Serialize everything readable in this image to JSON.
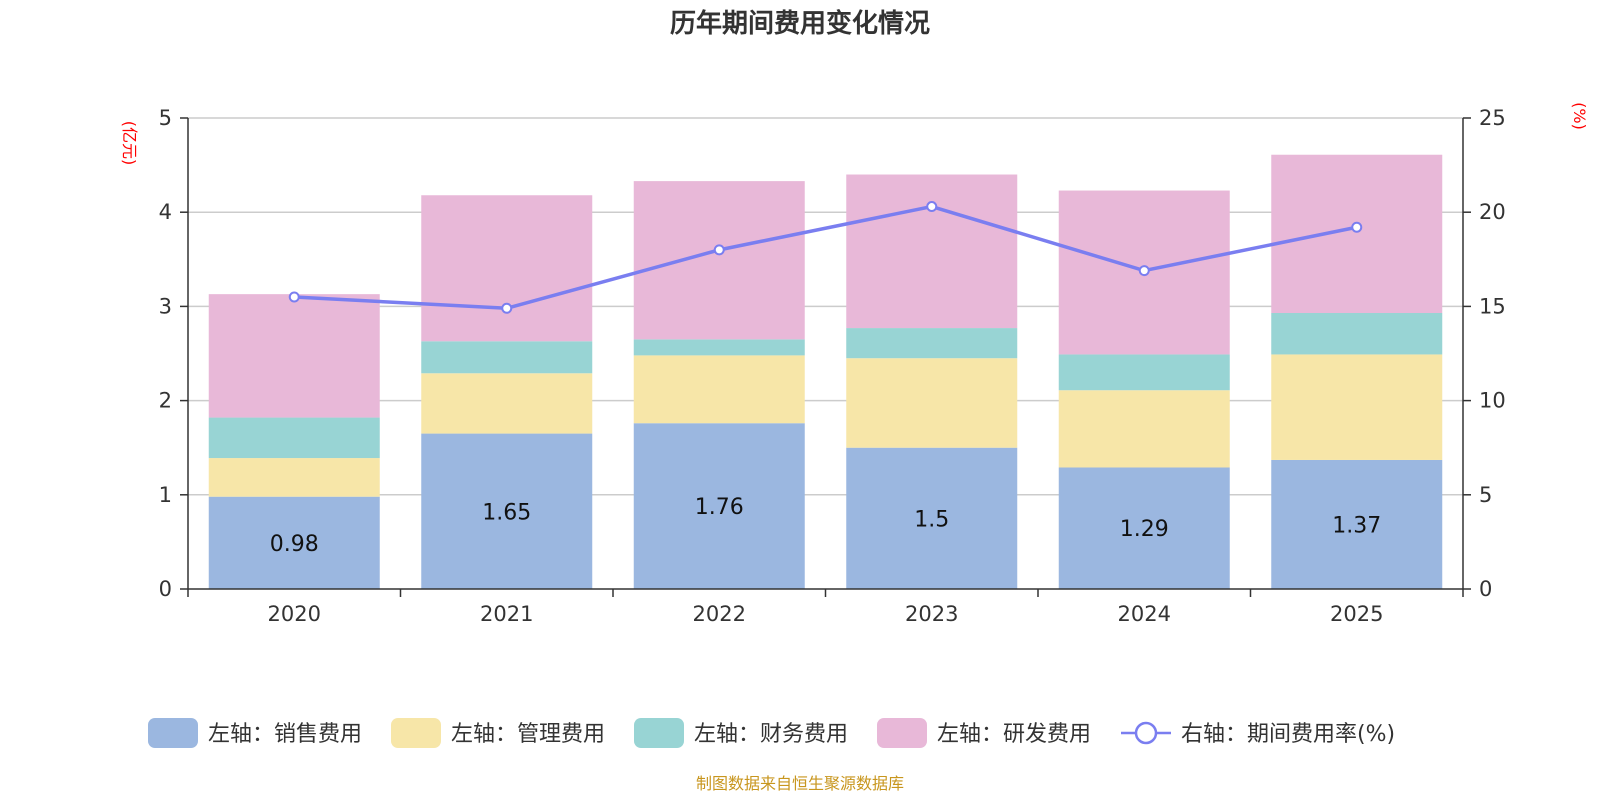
{
  "chart_data": {
    "type": "bar",
    "stacked": true,
    "title": "历年期间费用变化情况",
    "categories": [
      "2020",
      "2021",
      "2022",
      "2023",
      "2024",
      "2025"
    ],
    "left_axis": {
      "unit_label": "(亿元)",
      "ylim": [
        0,
        5
      ],
      "ticks": [
        "0",
        "1",
        "2",
        "3",
        "4",
        "5"
      ]
    },
    "right_axis": {
      "unit_label": "(%)",
      "ylim": [
        0,
        25
      ],
      "ticks": [
        "0",
        "5",
        "10",
        "15",
        "20",
        "25"
      ]
    },
    "series": [
      {
        "name": "左轴：销售费用",
        "type": "bar",
        "axis": "left",
        "color": "#9bb7e0",
        "values": [
          0.98,
          1.65,
          1.76,
          1.5,
          1.29,
          1.37
        ],
        "data_labels": [
          "0.98",
          "1.65",
          "1.76",
          "1.5",
          "1.29",
          "1.37"
        ]
      },
      {
        "name": "左轴：管理费用",
        "type": "bar",
        "axis": "left",
        "color": "#f7e6a8",
        "values": [
          0.41,
          0.64,
          0.72,
          0.95,
          0.82,
          1.12
        ]
      },
      {
        "name": "左轴：财务费用",
        "type": "bar",
        "axis": "left",
        "color": "#98d4d4",
        "values": [
          0.43,
          0.34,
          0.17,
          0.32,
          0.38,
          0.44
        ]
      },
      {
        "name": "左轴：研发费用",
        "type": "bar",
        "axis": "left",
        "color": "#e8b8d8",
        "values": [
          1.31,
          1.55,
          1.68,
          1.63,
          1.74,
          1.68
        ]
      },
      {
        "name": "右轴：期间费用率(%)",
        "type": "line",
        "axis": "right",
        "color": "#7a7ef0",
        "values": [
          15.5,
          14.9,
          18.0,
          20.3,
          16.9,
          19.2
        ]
      }
    ],
    "grid": true,
    "legend_position": "bottom",
    "source_note": "制图数据来自恒生聚源数据库"
  }
}
